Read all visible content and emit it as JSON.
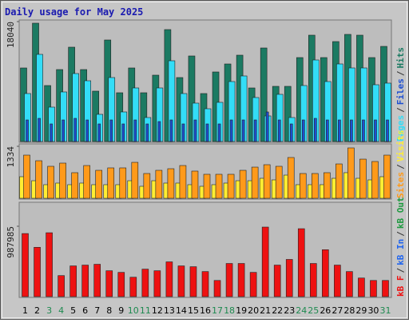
{
  "title": "Daily usage for May 2025",
  "legend_separator": "/",
  "chart_data": [
    {
      "type": "bar",
      "ylim": [
        0,
        18040
      ],
      "yticks": [
        18040
      ],
      "series": [
        {
          "name": "Pages",
          "color": "#33ddf7",
          "values": [
            7216,
            13109,
            5172,
            7457,
            10223,
            9140,
            4089,
            9622,
            4450,
            8058,
            3608,
            8058,
            12147,
            7216,
            5773,
            4931,
            5893,
            9020,
            9862,
            6615,
            3849,
            7096,
            3608,
            8419,
            12267,
            9020,
            11666,
            11065,
            11065,
            8539,
            8780
          ]
        },
        {
          "name": "Files",
          "color": "#1d4fd1",
          "values": [
            3247,
            3487,
            2646,
            3247,
            3487,
            3247,
            2646,
            3247,
            2646,
            3247,
            2646,
            3006,
            3247,
            2646,
            3247,
            2646,
            2646,
            3247,
            3247,
            3247,
            4450,
            3247,
            2646,
            3247,
            3487,
            3247,
            3247,
            3247,
            3247,
            3247,
            3247
          ]
        },
        {
          "name": "Hits",
          "color": "#1b7a62",
          "values": [
            11065,
            17800,
            8419,
            10824,
            14192,
            10824,
            7577,
            15274,
            7336,
            11065,
            7336,
            9982,
            16838,
            9622,
            12869,
            7216,
            10463,
            11666,
            12989,
            8058,
            14071,
            8299,
            8299,
            12628,
            15996,
            12628,
            15034,
            16116,
            15996,
            12628,
            14312
          ]
        }
      ]
    },
    {
      "type": "bar",
      "ylim": [
        0,
        1334
      ],
      "yticks": [
        1334
      ],
      "series": [
        {
          "name": "Sites",
          "color": "#ff9a1a",
          "values": [
            1108,
            964,
            821,
            903,
            657,
            841,
            718,
            780,
            780,
            923,
            636,
            718,
            759,
            841,
            698,
            616,
            616,
            616,
            718,
            800,
            862,
            821,
            1047,
            636,
            636,
            657,
            882,
            1293,
            1005,
            944,
            1108
          ]
        },
        {
          "name": "Visits",
          "color": "#ffee33",
          "values": [
            554,
            451,
            349,
            390,
            349,
            390,
            349,
            349,
            349,
            451,
            308,
            451,
            390,
            390,
            349,
            308,
            349,
            390,
            451,
            451,
            513,
            472,
            595,
            349,
            349,
            349,
            513,
            657,
            513,
            472,
            554
          ]
        }
      ]
    },
    {
      "type": "bar",
      "ylim": [
        0,
        987985
      ],
      "yticks": [
        987985
      ],
      "categories": [
        "1",
        "2",
        "3",
        "4",
        "5",
        "6",
        "7",
        "8",
        "9",
        "10",
        "11",
        "12",
        "13",
        "14",
        "15",
        "16",
        "17",
        "18",
        "19",
        "20",
        "21",
        "22",
        "23",
        "24",
        "25",
        "26",
        "27",
        "28",
        "29",
        "30",
        "31"
      ],
      "category_colors": [
        "#000000",
        "#000000",
        "#1e8a50",
        "#1e8a50",
        "#000000",
        "#000000",
        "#000000",
        "#000000",
        "#000000",
        "#1e8a50",
        "#1e8a50",
        "#000000",
        "#000000",
        "#000000",
        "#000000",
        "#000000",
        "#1e8a50",
        "#1e8a50",
        "#000000",
        "#000000",
        "#000000",
        "#000000",
        "#000000",
        "#1e8a50",
        "#1e8a50",
        "#000000",
        "#000000",
        "#000000",
        "#000000",
        "#000000",
        "#1e8a50"
      ],
      "series": [
        {
          "name": "kB F",
          "color": "#ee1111",
          "values": [
            885768,
            692716,
            897124,
            295256,
            431528,
            442884,
            454240,
            363392,
            340680,
            272544,
            386104,
            363392,
            488308,
            431528,
            420172,
            352036,
            227120,
            465596,
            465596,
            340680,
            976616,
            442884,
            522376,
            953904,
            465596,
            658648,
            442884,
            352036,
            261188,
            227120,
            227120
          ]
        }
      ],
      "other_labels": [
        {
          "name": "kB In",
          "color": "#2266ee"
        },
        {
          "name": "kB Out",
          "color": "#1e9a40"
        }
      ]
    }
  ]
}
